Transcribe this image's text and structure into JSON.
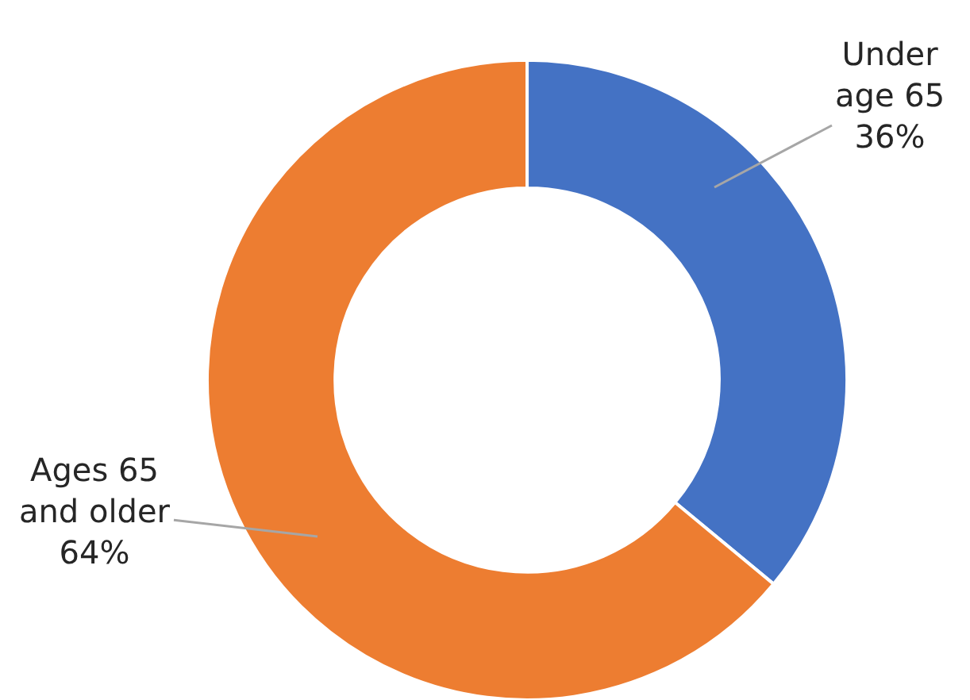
{
  "chart_data": {
    "type": "donut",
    "categories": [
      "Under age 65",
      "Ages 65 and older"
    ],
    "values": [
      36,
      64
    ],
    "colors": [
      "#4472c4",
      "#ed7d31"
    ],
    "value_labels": [
      "36%",
      "64%"
    ]
  }
}
